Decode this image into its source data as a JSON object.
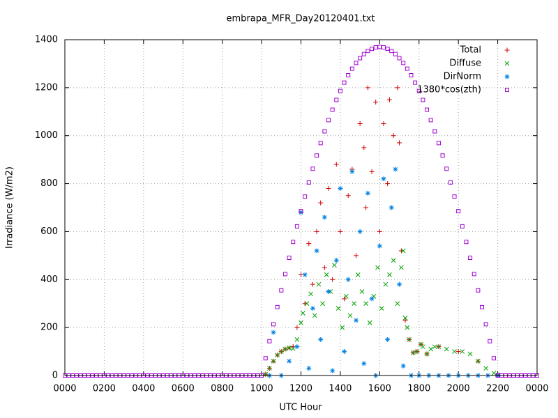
{
  "chart_data": {
    "type": "scatter",
    "title": "embrapa_MFR_Day20120401.txt",
    "x_label": "UTC Hour",
    "y_label": "Irradiance (W/m2)",
    "xlim": [
      0,
      24
    ],
    "ylim": [
      0,
      1400
    ],
    "xticks": [
      {
        "value": 0,
        "label": "0000"
      },
      {
        "value": 2,
        "label": "0200"
      },
      {
        "value": 4,
        "label": "0400"
      },
      {
        "value": 6,
        "label": "0600"
      },
      {
        "value": 8,
        "label": "0800"
      },
      {
        "value": 10,
        "label": "1000"
      },
      {
        "value": 12,
        "label": "1200"
      },
      {
        "value": 14,
        "label": "1400"
      },
      {
        "value": 16,
        "label": "1600"
      },
      {
        "value": 18,
        "label": "1800"
      },
      {
        "value": 20,
        "label": "2000"
      },
      {
        "value": 22,
        "label": "2200"
      },
      {
        "value": 24,
        "label": "0000"
      }
    ],
    "yticks": [
      0,
      200,
      400,
      600,
      800,
      1000,
      1200,
      1400
    ],
    "grid": true,
    "legend": "top-right",
    "series": [
      {
        "name": "Total",
        "color": "#d00000",
        "marker": "plus",
        "x": [
          10.2,
          10.4,
          10.6,
          10.8,
          11.0,
          11.2,
          11.4,
          11.6,
          11.8,
          12.0,
          12.2,
          12.4,
          12.6,
          12.8,
          13.0,
          13.2,
          13.4,
          13.6,
          13.8,
          14.0,
          14.2,
          14.4,
          14.6,
          14.8,
          15.0,
          15.2,
          15.3,
          15.4,
          15.6,
          15.8,
          16.0,
          16.2,
          16.4,
          16.5,
          16.7,
          16.9,
          17.0,
          17.1,
          17.3,
          17.5,
          17.7,
          17.9,
          18.1,
          18.4,
          19.0,
          20.0,
          21.0,
          22.0
        ],
        "values": [
          5,
          30,
          60,
          85,
          100,
          110,
          115,
          120,
          200,
          420,
          300,
          550,
          380,
          600,
          720,
          450,
          780,
          400,
          880,
          600,
          320,
          750,
          860,
          500,
          1050,
          950,
          700,
          1200,
          850,
          1140,
          600,
          1050,
          800,
          1150,
          1000,
          1200,
          970,
          520,
          230,
          150,
          95,
          100,
          130,
          90,
          120,
          100,
          60,
          3
        ]
      },
      {
        "name": "Diffuse",
        "color": "#00a000",
        "marker": "cross",
        "x": [
          10.2,
          10.4,
          10.6,
          10.8,
          11.0,
          11.2,
          11.4,
          11.6,
          11.8,
          12.0,
          12.1,
          12.3,
          12.5,
          12.7,
          12.9,
          13.1,
          13.3,
          13.5,
          13.7,
          13.9,
          14.1,
          14.3,
          14.5,
          14.7,
          14.9,
          15.1,
          15.3,
          15.5,
          15.7,
          15.9,
          16.1,
          16.3,
          16.5,
          16.7,
          16.9,
          17.1,
          17.2,
          17.3,
          17.4,
          17.5,
          17.7,
          17.9,
          18.1,
          18.2,
          18.4,
          18.6,
          18.8,
          19.0,
          19.4,
          19.8,
          20.2,
          20.6,
          21.0,
          21.4,
          21.8,
          22.0
        ],
        "values": [
          5,
          30,
          60,
          85,
          100,
          110,
          115,
          112,
          150,
          220,
          260,
          300,
          340,
          250,
          380,
          300,
          420,
          350,
          460,
          280,
          200,
          330,
          250,
          300,
          420,
          350,
          300,
          220,
          330,
          450,
          280,
          380,
          420,
          480,
          300,
          450,
          520,
          240,
          200,
          150,
          95,
          100,
          130,
          120,
          90,
          110,
          120,
          120,
          110,
          100,
          100,
          90,
          60,
          30,
          10,
          3
        ]
      },
      {
        "name": "DirNorm",
        "color": "#0080e0",
        "marker": "star",
        "x": [
          10.4,
          10.6,
          11.0,
          11.4,
          11.8,
          12.0,
          12.2,
          12.4,
          12.6,
          12.8,
          13.0,
          13.2,
          13.4,
          13.6,
          13.8,
          14.0,
          14.2,
          14.4,
          14.6,
          14.8,
          15.0,
          15.2,
          15.4,
          15.6,
          15.8,
          16.0,
          16.2,
          16.4,
          16.6,
          16.8,
          17.0,
          17.2,
          17.6,
          18.0,
          18.5,
          19.0,
          19.5,
          20.0,
          20.5,
          21.0,
          21.5,
          22.0
        ],
        "values": [
          0,
          180,
          0,
          60,
          120,
          680,
          420,
          30,
          280,
          520,
          150,
          660,
          350,
          20,
          480,
          780,
          100,
          400,
          850,
          230,
          600,
          50,
          760,
          320,
          0,
          540,
          820,
          150,
          700,
          860,
          380,
          40,
          0,
          0,
          0,
          0,
          0,
          0,
          0,
          0,
          0,
          0
        ]
      },
      {
        "name": "1380*cos(zth)",
        "color": "#a000d0",
        "marker": "square",
        "x": [
          0,
          0.2,
          0.4,
          0.6,
          0.8,
          1,
          1.2,
          1.4,
          1.6,
          1.8,
          2,
          2.2,
          2.4,
          2.6,
          2.8,
          3,
          3.2,
          3.4,
          3.6,
          3.8,
          4,
          4.2,
          4.4,
          4.6,
          4.8,
          5,
          5.2,
          5.4,
          5.6,
          5.8,
          6,
          6.2,
          6.4,
          6.6,
          6.8,
          7,
          7.2,
          7.4,
          7.6,
          7.8,
          8,
          8.2,
          8.4,
          8.6,
          8.8,
          9,
          9.2,
          9.4,
          9.6,
          9.8,
          10,
          10.2,
          10.4,
          10.6,
          10.8,
          11,
          11.2,
          11.4,
          11.6,
          11.8,
          12,
          12.2,
          12.4,
          12.6,
          12.8,
          13,
          13.2,
          13.4,
          13.6,
          13.8,
          14,
          14.2,
          14.4,
          14.6,
          14.8,
          15,
          15.2,
          15.4,
          15.6,
          15.8,
          16,
          16.2,
          16.4,
          16.6,
          16.8,
          17,
          17.2,
          17.4,
          17.6,
          17.8,
          18,
          18.2,
          18.4,
          18.6,
          18.8,
          19,
          19.2,
          19.4,
          19.6,
          19.8,
          20,
          20.2,
          20.4,
          20.6,
          20.8,
          21,
          21.2,
          21.4,
          21.6,
          21.8,
          22,
          22.2,
          22.4,
          22.6,
          22.8,
          23,
          23.2,
          23.4,
          23.6,
          23.8,
          24
        ],
        "values": [
          0,
          0,
          0,
          0,
          0,
          0,
          0,
          0,
          0,
          0,
          0,
          0,
          0,
          0,
          0,
          0,
          0,
          0,
          0,
          0,
          0,
          0,
          0,
          0,
          0,
          0,
          0,
          0,
          0,
          0,
          0,
          0,
          0,
          0,
          0,
          0,
          0,
          0,
          0,
          0,
          0,
          0,
          0,
          0,
          0,
          0,
          0,
          0,
          0,
          0,
          0,
          72,
          143,
          214,
          285,
          355,
          423,
          491,
          557,
          622,
          685,
          746,
          805,
          862,
          917,
          969,
          1018,
          1065,
          1108,
          1149,
          1186,
          1221,
          1252,
          1279,
          1303,
          1323,
          1340,
          1353,
          1362,
          1368,
          1370,
          1368,
          1362,
          1353,
          1340,
          1323,
          1303,
          1279,
          1252,
          1221,
          1186,
          1149,
          1108,
          1065,
          1018,
          969,
          917,
          862,
          805,
          746,
          685,
          622,
          557,
          491,
          423,
          355,
          285,
          214,
          143,
          72,
          0,
          0,
          0,
          0,
          0,
          0,
          0,
          0,
          0,
          0,
          0
        ]
      }
    ]
  }
}
